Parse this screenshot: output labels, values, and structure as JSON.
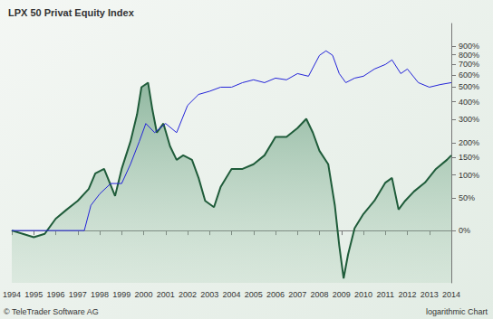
{
  "chart_data": {
    "type": "line",
    "title": "LPX 50 Privat Equity Index",
    "annotations": [
      "© TeleTrader Software AG",
      "logarithmic Chart"
    ],
    "log": "y",
    "grid": false,
    "xlim": [
      1994,
      2014
    ],
    "xticks": [
      1994,
      1995,
      1996,
      1997,
      1998,
      1999,
      2000,
      2001,
      2002,
      2003,
      2004,
      2005,
      2006,
      2007,
      2008,
      2009,
      2010,
      2011,
      2012,
      2013,
      2014
    ],
    "ylim": [
      -48,
      1230
    ],
    "yticks": [
      {
        "value": 0,
        "label": "0%"
      },
      {
        "value": 50,
        "label": "50%"
      },
      {
        "value": 100,
        "label": "100%"
      },
      {
        "value": 150,
        "label": "150%"
      },
      {
        "value": 200,
        "label": "200%"
      },
      {
        "value": 300,
        "label": "300%"
      },
      {
        "value": 400,
        "label": "400%"
      },
      {
        "value": 500,
        "label": "500%"
      },
      {
        "value": 600,
        "label": "600%"
      },
      {
        "value": 700,
        "label": "700%"
      },
      {
        "value": 800,
        "label": "800%"
      },
      {
        "value": 900,
        "label": "900%"
      }
    ],
    "series": [
      {
        "type": "area",
        "color": "#1f5c3a",
        "x": [
          1994.0,
          1994.5,
          1995.0,
          1995.5,
          1996.0,
          1996.5,
          1997.0,
          1997.5,
          1997.8,
          1998.2,
          1998.7,
          1999.0,
          1999.4,
          1999.7,
          1999.9,
          2000.2,
          2000.4,
          2000.6,
          2000.9,
          2001.2,
          2001.5,
          2001.8,
          2002.2,
          2002.5,
          2002.8,
          2003.2,
          2003.5,
          2004.0,
          2004.5,
          2005.0,
          2005.5,
          2006.0,
          2006.5,
          2007.0,
          2007.4,
          2007.7,
          2008.0,
          2008.4,
          2008.7,
          2008.9,
          2009.1,
          2009.3,
          2009.6,
          2010.0,
          2010.5,
          2011.0,
          2011.3,
          2011.6,
          2011.9,
          2012.3,
          2012.8,
          2013.3,
          2013.8,
          2014.0
        ],
        "values": [
          0,
          -4,
          -8,
          -4,
          16,
          30,
          45,
          68,
          104,
          116,
          54,
          116,
          204,
          327,
          500,
          535,
          352,
          240,
          281,
          187,
          142,
          156,
          142,
          93,
          45,
          34,
          72,
          116,
          116,
          129,
          156,
          222,
          222,
          260,
          304,
          240,
          171,
          129,
          37,
          -17,
          -45,
          -26,
          3,
          23,
          45,
          82,
          93,
          30,
          45,
          63,
          82,
          116,
          142,
          156
        ]
      },
      {
        "type": "line",
        "color": "#2323d8",
        "x": [
          1994.0,
          1997.3,
          1997.6,
          1998.0,
          1998.5,
          1999.0,
          1999.4,
          1999.8,
          2000.1,
          2000.5,
          2001.0,
          2001.5,
          2002.0,
          2002.5,
          2003.0,
          2003.5,
          2004.0,
          2004.5,
          2005.0,
          2005.5,
          2006.0,
          2006.5,
          2007.0,
          2007.5,
          2008.0,
          2008.3,
          2008.6,
          2008.9,
          2009.2,
          2009.6,
          2010.0,
          2010.5,
          2011.0,
          2011.3,
          2011.7,
          2012.0,
          2012.5,
          2013.0,
          2013.5,
          2014.0
        ],
        "values": [
          0,
          0,
          37,
          58,
          80,
          80,
          129,
          204,
          281,
          240,
          281,
          240,
          378,
          448,
          470,
          500,
          500,
          535,
          558,
          535,
          572,
          558,
          611,
          588,
          793,
          845,
          793,
          611,
          535,
          572,
          588,
          653,
          697,
          744,
          611,
          653,
          535,
          500,
          520,
          535
        ]
      }
    ]
  }
}
